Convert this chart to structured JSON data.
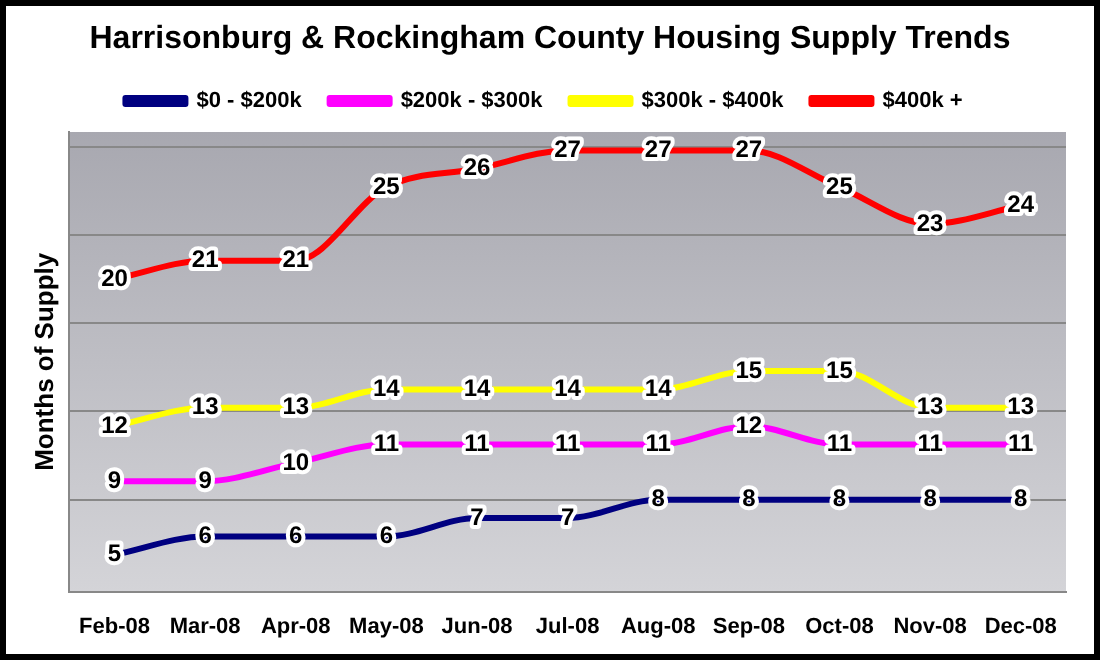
{
  "chart_data": {
    "type": "line",
    "title": "Harrisonburg & Rockingham County Housing Supply Trends",
    "ylabel": "Months of Supply",
    "categories": [
      "Feb-08",
      "Mar-08",
      "Apr-08",
      "May-08",
      "Jun-08",
      "Jul-08",
      "Aug-08",
      "Sep-08",
      "Oct-08",
      "Nov-08",
      "Dec-08"
    ],
    "series": [
      {
        "name": "$0 - $200k",
        "color": "#000080",
        "values": [
          5,
          6,
          6,
          6,
          7,
          7,
          8,
          8,
          8,
          8,
          8
        ]
      },
      {
        "name": "$200k - $300k",
        "color": "#ff00ff",
        "values": [
          9,
          9,
          10,
          11,
          11,
          11,
          11,
          12,
          11,
          11,
          11
        ]
      },
      {
        "name": "$300k - $400k",
        "color": "#ffff00",
        "values": [
          12,
          13,
          13,
          14,
          14,
          14,
          14,
          15,
          15,
          13,
          13
        ]
      },
      {
        "name": "$400k +",
        "color": "#ff0000",
        "values": [
          20,
          21,
          21,
          25,
          26,
          27,
          27,
          27,
          25,
          23,
          24
        ]
      }
    ],
    "ylim": [
      3,
      28
    ],
    "yticks": [
      {
        "value": 8,
        "label": null
      },
      {
        "value": 12.8,
        "label": null
      },
      {
        "value": 17.6,
        "label": null
      },
      {
        "value": 22.4,
        "label": null
      },
      {
        "value": 27.2,
        "label": null
      }
    ],
    "tick_labels": "x",
    "grid": "y",
    "legend": "top",
    "marker": "none",
    "line_style": "solid",
    "data_labels": true
  }
}
